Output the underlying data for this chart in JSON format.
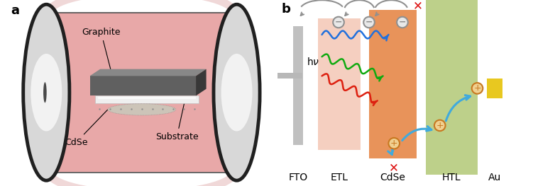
{
  "panel_a_label": "a",
  "panel_b_label": "b",
  "graphite_label": "Graphite",
  "cdse_label": "CdSe",
  "substrate_label": "Substrate",
  "layer_labels": [
    "FTO",
    "ETL",
    "CdSe",
    "HTL",
    "Au"
  ],
  "tube_color": "#e8a8a8",
  "graphite_front": "#606060",
  "graphite_top": "#888888",
  "graphite_side": "#383838",
  "substrate_color": "#f0f0f0",
  "cdse_powder": "#ccc8c0",
  "etl_color": "#f5cfc0",
  "cdse_layer_color": "#e8935a",
  "htl_color": "#bdd08a",
  "au_color": "#e8c820",
  "fto_color": "#c0c0c0",
  "electron_edge": "#909090",
  "hole_edge": "#c87820",
  "hole_fill": "#f0d090",
  "red_x": "#dd1010",
  "arrow_blue": "#40aadd",
  "wave_red": "#dd2010",
  "wave_green": "#10aa10",
  "wave_blue": "#2070dd",
  "gray_arc": "#909090",
  "label_fontsize": 10,
  "annot_fontsize": 9
}
